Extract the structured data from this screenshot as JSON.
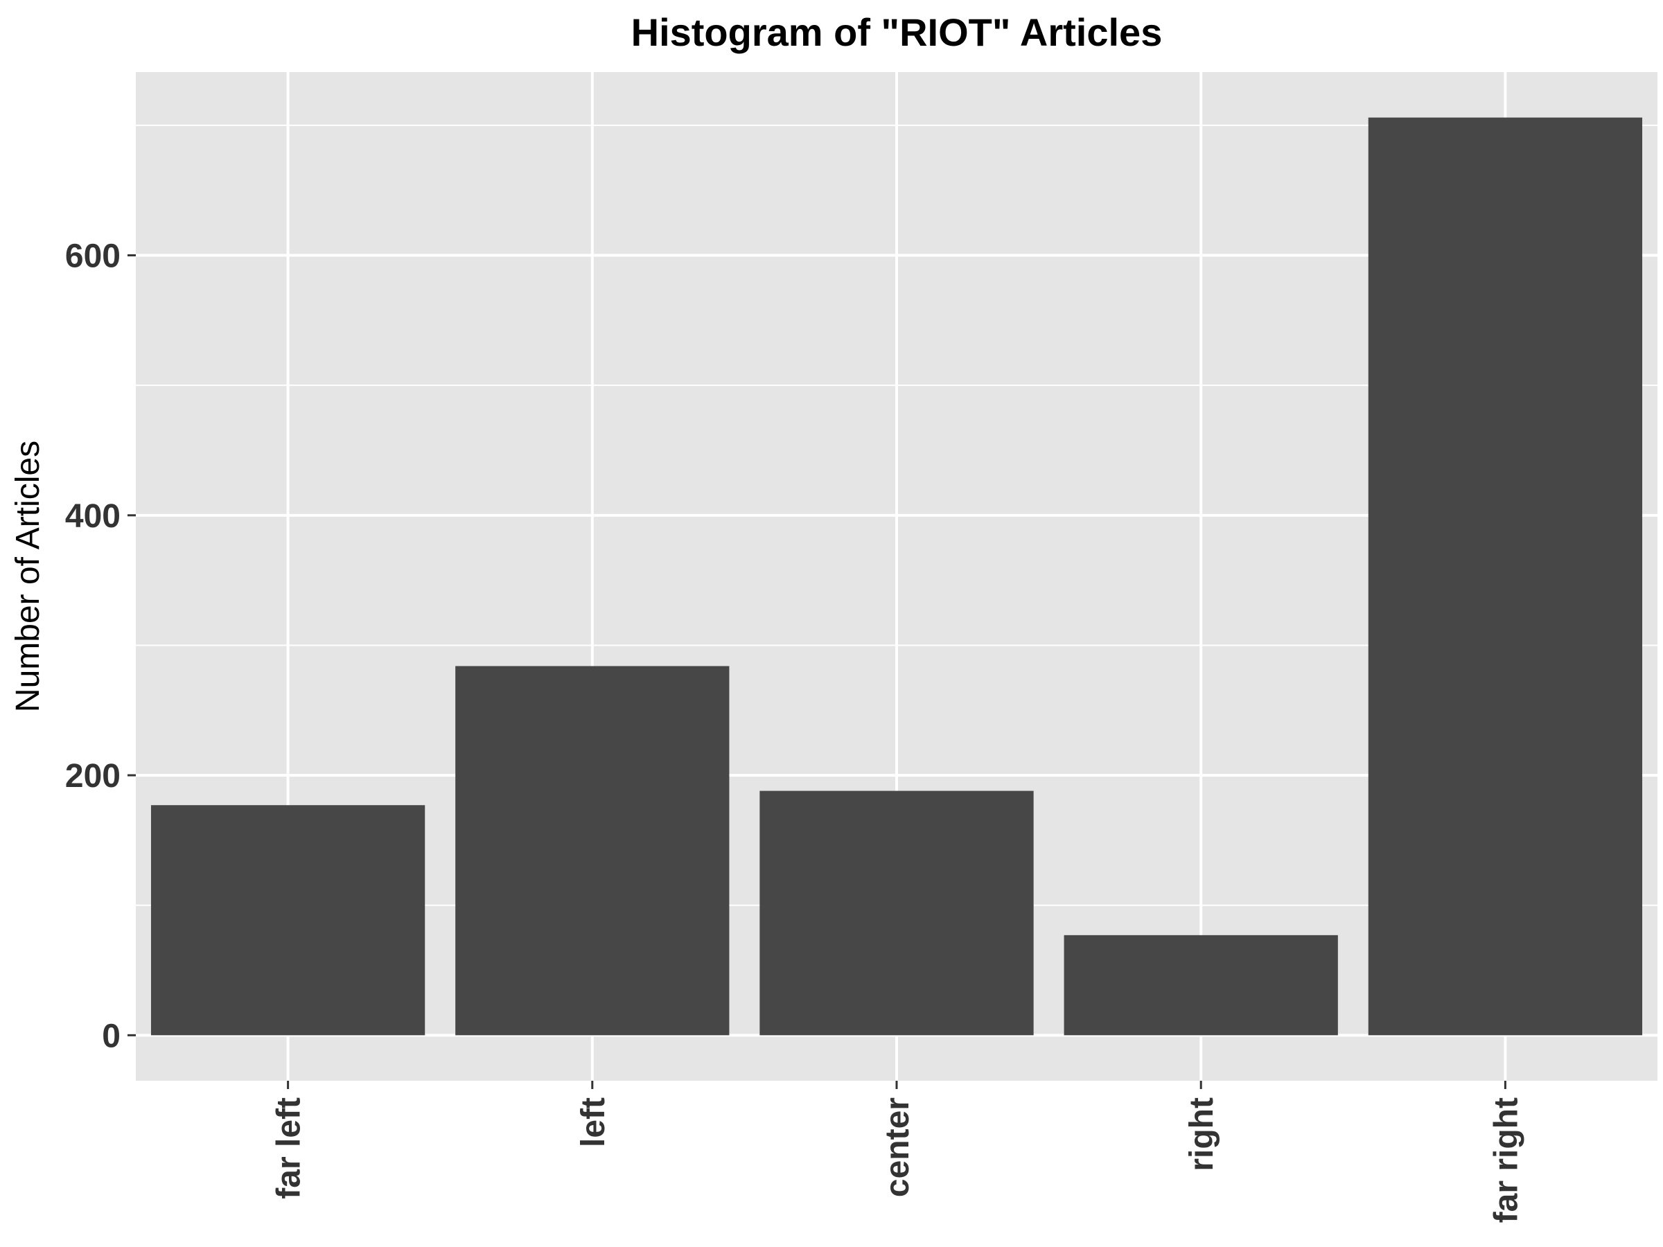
{
  "chart_data": {
    "type": "bar",
    "title": "Histogram of \"RIOT\" Articles",
    "xlabel": "",
    "ylabel": "Number of Articles",
    "categories": [
      "far left",
      "left",
      "center",
      "right",
      "far right"
    ],
    "values": [
      177,
      284,
      188,
      77,
      706
    ],
    "ylim": [
      -35,
      741
    ],
    "yticks": [
      0,
      200,
      400,
      600
    ],
    "grid": true,
    "colors": {
      "panel": "#e5e5e5",
      "grid": "#ffffff",
      "bar": "#474747",
      "tick": "#333333"
    }
  }
}
